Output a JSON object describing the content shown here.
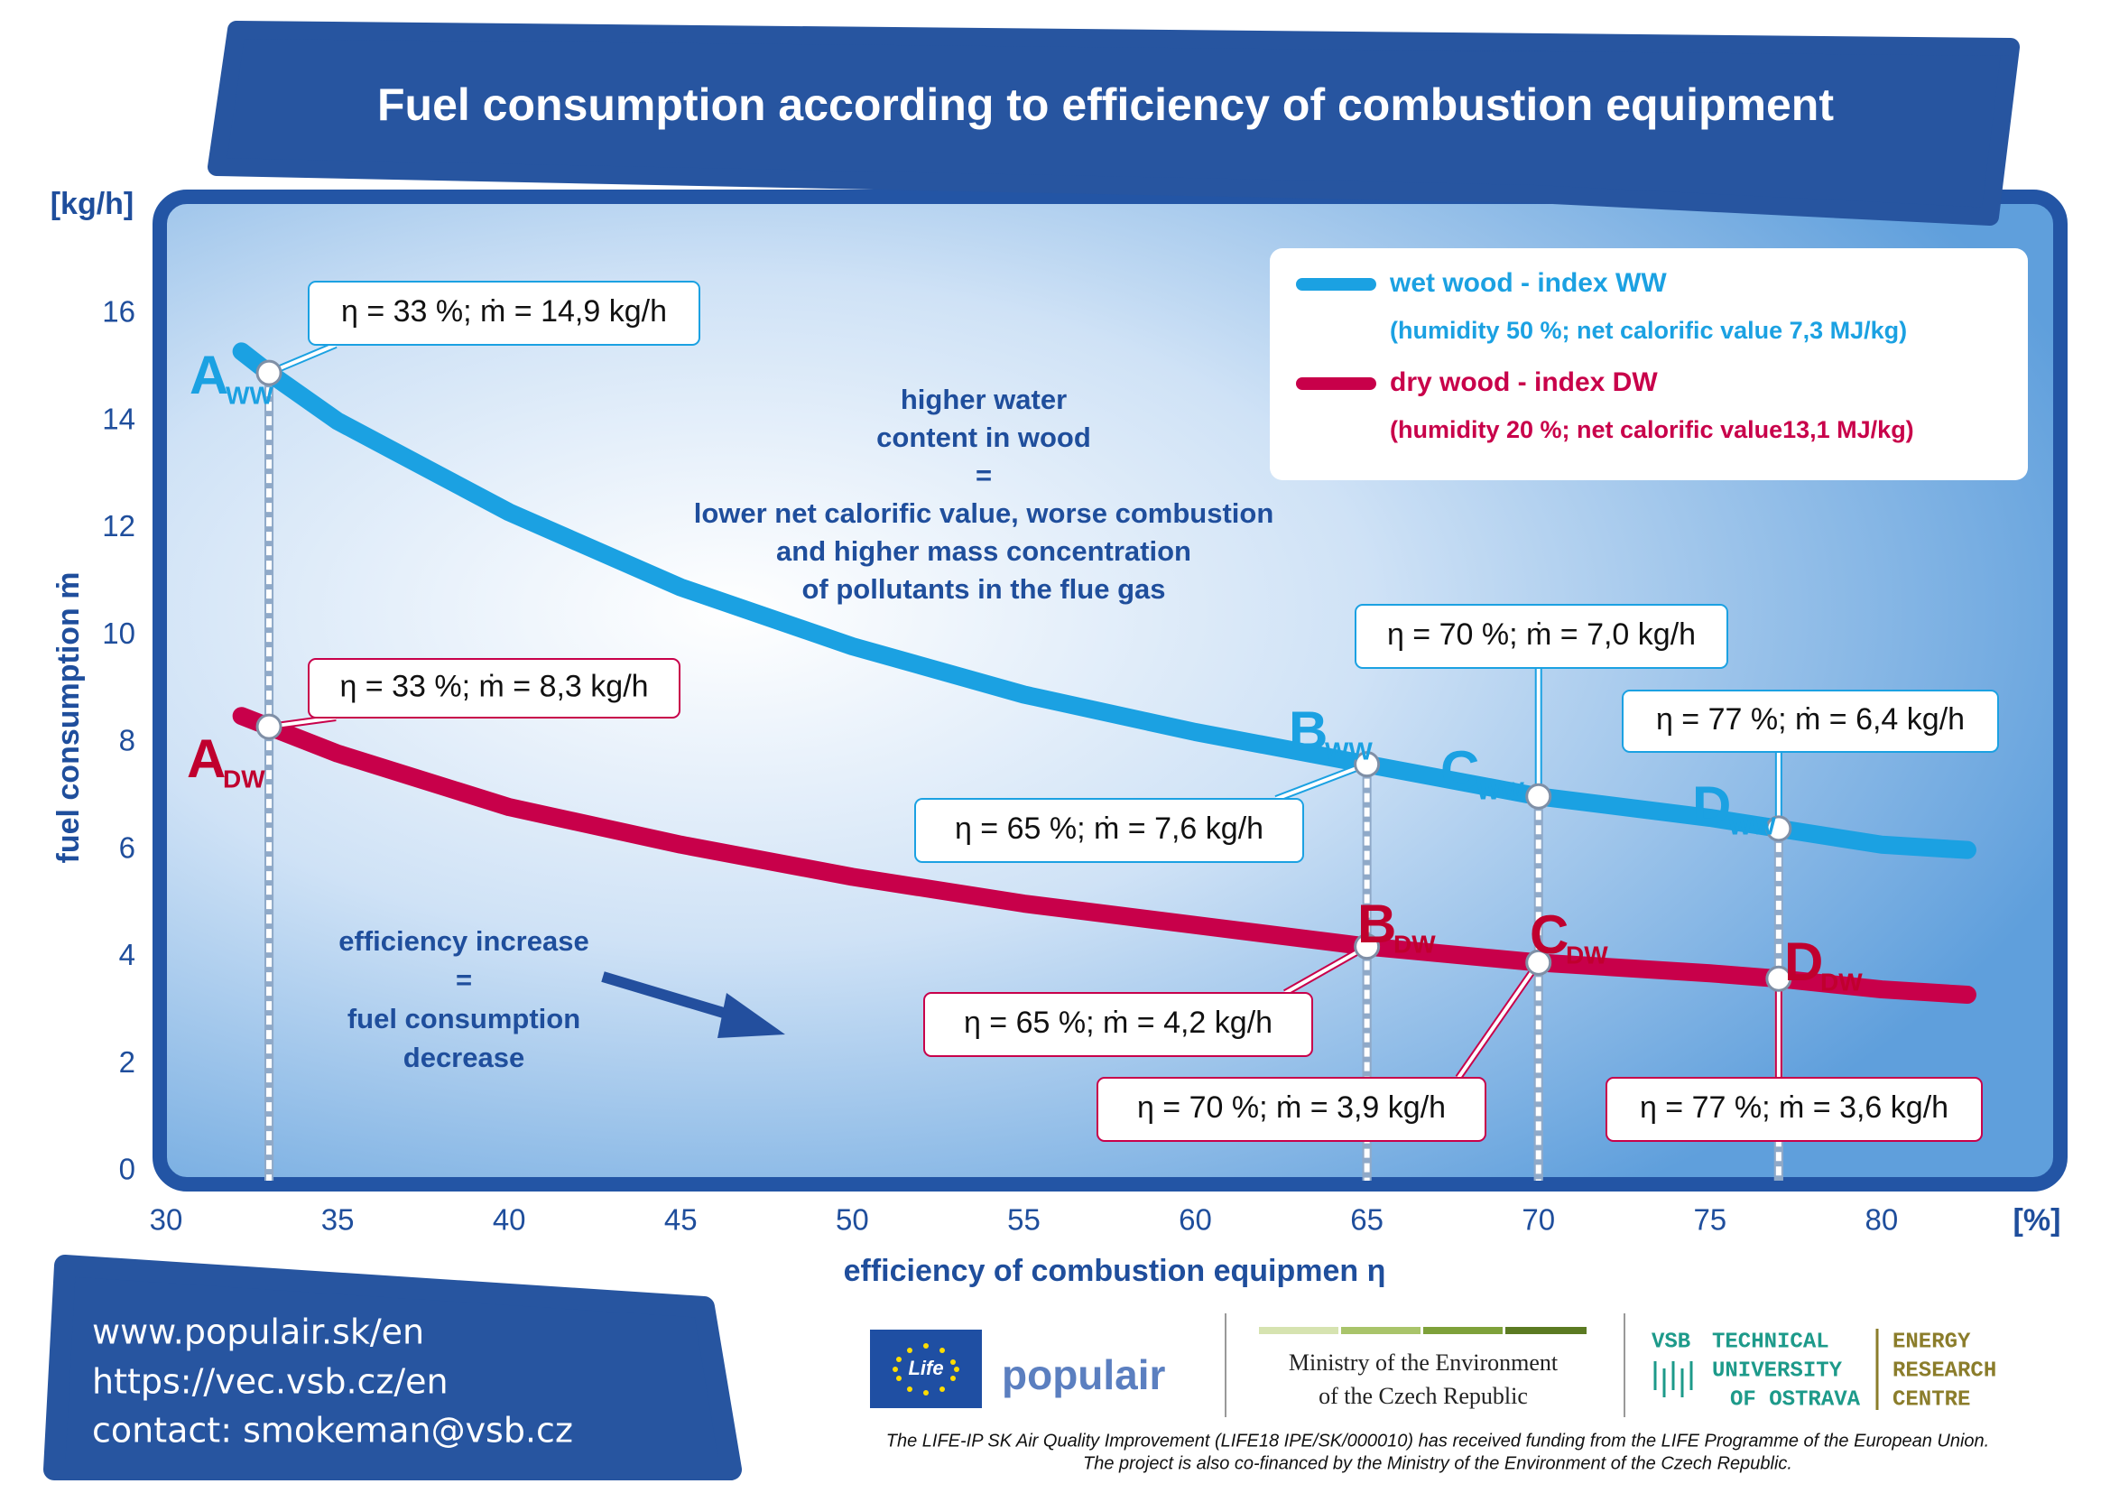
{
  "chart_data": {
    "type": "line",
    "title": "Fuel consumption according to efficiency of combustion equipment",
    "y_unit": "[kg/h]",
    "y_label": "fuel consumption ṁ",
    "x_unit": "[%]",
    "x_label": "efficiency of combustion equipmen η",
    "x": [
      32.2,
      33,
      35,
      40,
      45,
      50,
      55,
      60,
      65,
      70,
      75,
      77,
      80,
      82.5
    ],
    "series": [
      {
        "name": "wet wood - index WW",
        "description": "(humidity 50 %; net calorific value 7,3 MJ/kg)",
        "color": "#1ba1e2",
        "values": [
          15.3,
          14.9,
          14.0,
          12.3,
          10.9,
          9.8,
          8.9,
          8.2,
          7.6,
          7.0,
          6.6,
          6.4,
          6.1,
          6.0
        ],
        "points": [
          {
            "letter": "A",
            "index": "WW",
            "x": 33,
            "y": 14.9,
            "label": "η = 33 %; ṁ = 14,9 kg/h"
          },
          {
            "letter": "B",
            "index": "WW",
            "x": 65,
            "y": 7.6,
            "label": "η = 65 %; ṁ = 7,6 kg/h"
          },
          {
            "letter": "C",
            "index": "WW",
            "x": 70,
            "y": 7.0,
            "label": "η = 70 %; ṁ = 7,0 kg/h"
          },
          {
            "letter": "D",
            "index": "WW",
            "x": 77,
            "y": 6.4,
            "label": "η = 77 %; ṁ = 6,4 kg/h"
          }
        ]
      },
      {
        "name": "dry wood - index DW",
        "description": "(humidity 20 %; net calorific value13,1 MJ/kg)",
        "color": "#c8004a",
        "values": [
          8.5,
          8.3,
          7.8,
          6.8,
          6.1,
          5.5,
          5.0,
          4.6,
          4.2,
          3.9,
          3.7,
          3.6,
          3.4,
          3.3
        ],
        "points": [
          {
            "letter": "A",
            "index": "DW",
            "x": 33,
            "y": 8.3,
            "label": "η = 33 %; ṁ = 8,3 kg/h"
          },
          {
            "letter": "B",
            "index": "DW",
            "x": 65,
            "y": 4.2,
            "label": "η = 65 %; ṁ = 4,2 kg/h"
          },
          {
            "letter": "C",
            "index": "DW",
            "x": 70,
            "y": 3.9,
            "label": "η = 70 %; ṁ = 3,9 kg/h"
          },
          {
            "letter": "D",
            "index": "DW",
            "x": 77,
            "y": 3.6,
            "label": "η = 77 %; ṁ = 3,6 kg/h"
          }
        ]
      }
    ],
    "xlim": [
      30,
      85
    ],
    "xticks": [
      30,
      35,
      40,
      45,
      50,
      55,
      60,
      65,
      70,
      75,
      80
    ],
    "ylim": [
      0,
      18
    ],
    "yticks": [
      0,
      2,
      4,
      6,
      8,
      10,
      12,
      14,
      16
    ],
    "annotations": [
      {
        "lines": [
          "higher water",
          "content in wood",
          "=",
          "lower net calorific value, worse combustion",
          "and higher mass concentration",
          "of pollutants in the flue gas"
        ]
      },
      {
        "lines": [
          "efficiency increase",
          "=",
          "fuel consumption",
          "decrease"
        ]
      }
    ]
  },
  "footer": {
    "links": [
      "www.populair.sk/en",
      "https://vec.vsb.cz/en",
      "contact: smokeman@vsb.cz"
    ],
    "life": "Life",
    "populair": "populair",
    "ministry": [
      "Ministry of the Environment",
      "of the Czech Republic"
    ],
    "vsb": [
      "VSB",
      "TECHNICAL",
      "UNIVERSITY",
      "OF OSTRAVA"
    ],
    "erc": [
      "ENERGY",
      "RESEARCH",
      "CENTRE"
    ],
    "funding": [
      "The LIFE-IP SK Air Quality Improvement (LIFE18 IPE/SK/000010) has received funding from the LIFE Programme of the European Union.",
      "The project is also co-financed by the Ministry of the Environment of the Czech Republic."
    ]
  }
}
